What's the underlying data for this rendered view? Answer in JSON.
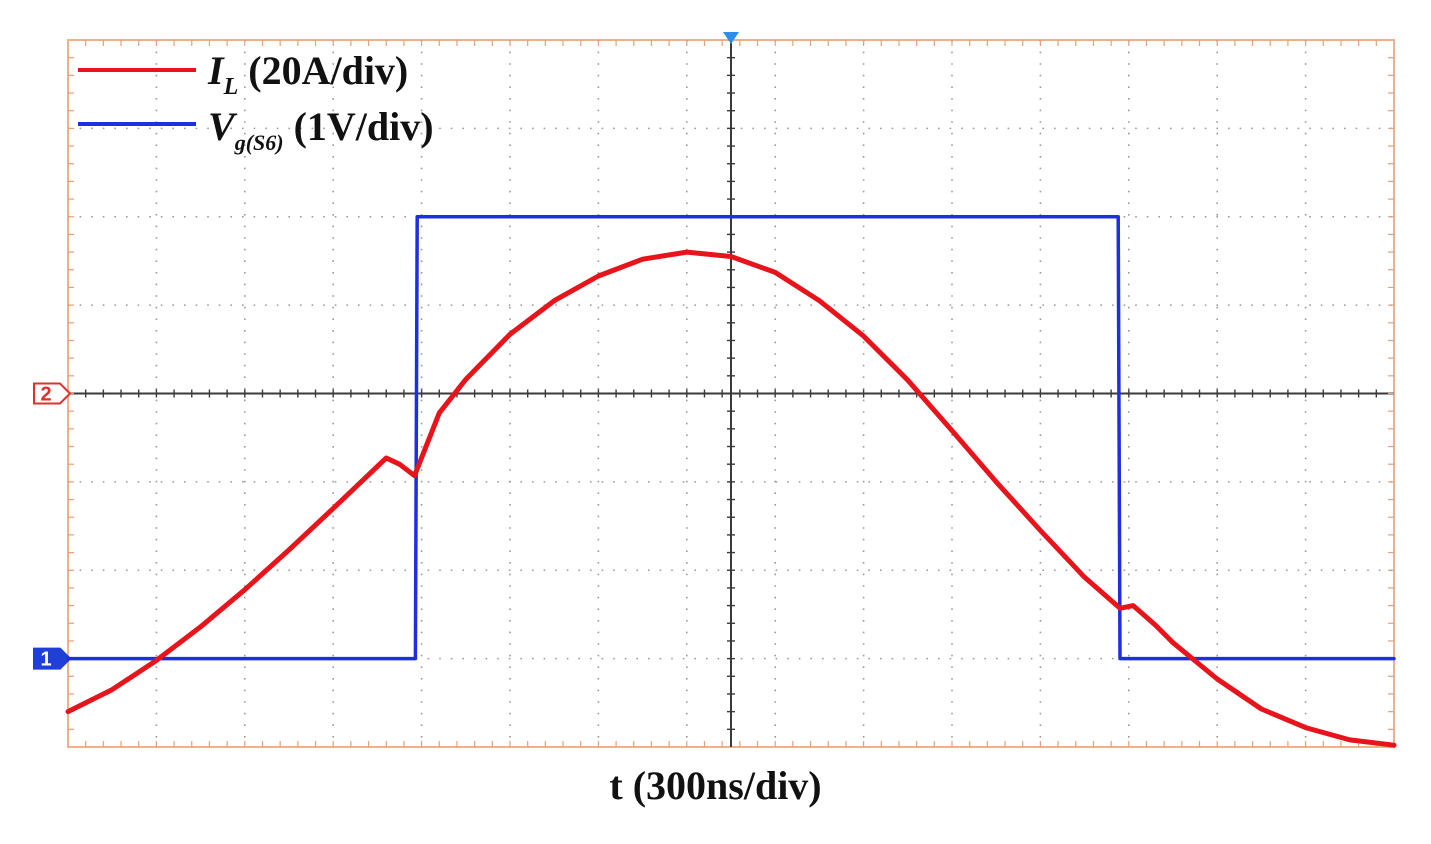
{
  "chart_data": {
    "type": "line",
    "title": "",
    "xlabel": "t (300ns/div)",
    "ylabel": "",
    "grid": true,
    "legend_position": "top-left",
    "x_divisions": 15,
    "y_divisions": 8,
    "xlim": [
      0,
      15
    ],
    "ylim": [
      0,
      8
    ],
    "channel_markers": [
      {
        "label": "1",
        "level": 1.0,
        "color": "#1f3fd6"
      },
      {
        "label": "2",
        "level": 4.0,
        "color": "#e0302a"
      }
    ],
    "trigger_marker": {
      "x": 7.5,
      "color": "#2b8ee8"
    },
    "series": [
      {
        "name": "I_L (20A/div)",
        "legend": {
          "symbol": "I",
          "subscript": "L",
          "scale": "(20A/div)"
        },
        "color": "#e8141b",
        "x": [
          0,
          0.5,
          1.0,
          1.5,
          2.0,
          2.5,
          3.0,
          3.6,
          3.75,
          3.92,
          4.2,
          4.5,
          5.0,
          5.5,
          6.0,
          6.5,
          7.0,
          7.5,
          8.0,
          8.5,
          9.0,
          9.5,
          10.0,
          10.5,
          11.0,
          11.5,
          11.9,
          12.05,
          12.3,
          12.5,
          13.0,
          13.5,
          14.0,
          14.5,
          15.0
        ],
        "y": [
          0.4,
          0.65,
          0.98,
          1.36,
          1.78,
          2.23,
          2.7,
          3.27,
          3.2,
          3.07,
          3.78,
          4.16,
          4.67,
          5.05,
          5.33,
          5.52,
          5.6,
          5.55,
          5.37,
          5.05,
          4.65,
          4.15,
          3.58,
          3.0,
          2.45,
          1.92,
          1.57,
          1.6,
          1.38,
          1.18,
          0.77,
          0.43,
          0.22,
          0.08,
          0.02
        ]
      },
      {
        "name": "V_g(S6) (1V/div)",
        "legend": {
          "symbol": "V",
          "subscript": "g(S6)",
          "scale": "(1V/div)"
        },
        "color": "#1d2fe0",
        "x": [
          0,
          3.93,
          3.95,
          11.88,
          11.9,
          15.0
        ],
        "y": [
          1.0,
          1.0,
          6.0,
          6.0,
          1.0,
          1.0
        ]
      }
    ]
  }
}
